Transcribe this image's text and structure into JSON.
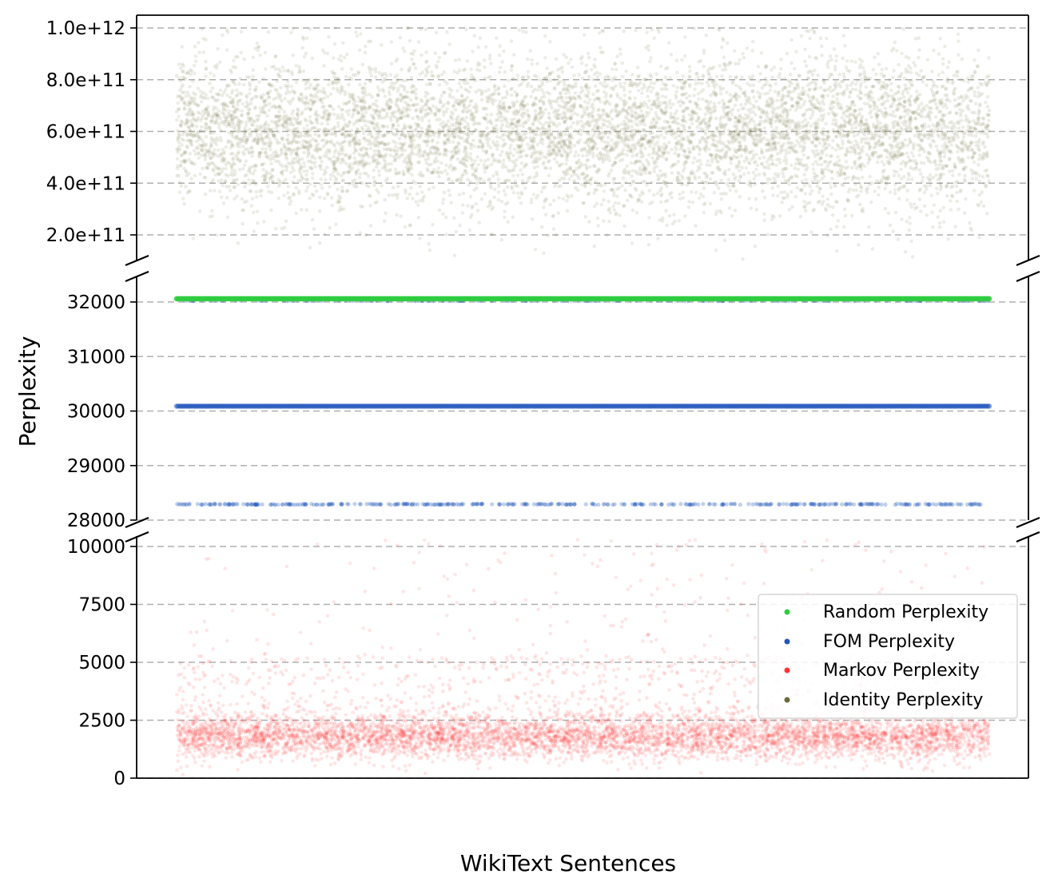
{
  "chart_data": {
    "type": "scatter",
    "xlabel": "WikiText Sentences",
    "ylabel": "Perplexity",
    "grid": "horizontal-dashed",
    "broken_axis": true,
    "legend_position": "right",
    "x_range": [
      0,
      10000
    ],
    "panels": [
      {
        "name": "top",
        "ylim": [
          100000000000,
          1050000000000
        ],
        "ticks": [
          200000000000,
          400000000000,
          600000000000,
          800000000000,
          1000000000000
        ],
        "tick_labels": [
          "2.0e+11",
          "4.0e+11",
          "6.0e+11",
          "8.0e+11",
          "1.0e+12"
        ]
      },
      {
        "name": "middle",
        "ylim": [
          28000,
          32300
        ],
        "ticks": [
          28000,
          29000,
          30000,
          31000,
          32000
        ],
        "tick_labels": [
          "28000",
          "29000",
          "30000",
          "31000",
          "32000"
        ]
      },
      {
        "name": "bottom",
        "ylim": [
          0,
          10400
        ],
        "ticks": [
          0,
          2500,
          5000,
          7500,
          10000
        ],
        "tick_labels": [
          "0",
          "2500",
          "5000",
          "7500",
          "10000"
        ]
      }
    ],
    "series": [
      {
        "name": "Random Perplexity",
        "color": "#2ecc40",
        "panel": "middle",
        "constant_y": 32060
      },
      {
        "name": "FOM Perplexity",
        "color": "#2255bb",
        "panel": "middle",
        "levels": [
          30090,
          28290
        ]
      },
      {
        "name": "Markov Perplexity",
        "color": "#ff3333",
        "panel": "bottom",
        "distribution": {
          "typical_min": 800,
          "typical_max": 3000,
          "median": 1800,
          "outlier_max": 10400
        }
      },
      {
        "name": "Identity Perplexity",
        "color": "#6b6b3a",
        "panel": "top",
        "distribution": {
          "typical_min": 300000000000,
          "typical_max": 900000000000,
          "median": 600000000000,
          "outlier_max": 1000000000000
        }
      }
    ],
    "legend": [
      "Random Perplexity",
      "FOM Perplexity",
      "Markov Perplexity",
      "Identity Perplexity"
    ]
  }
}
